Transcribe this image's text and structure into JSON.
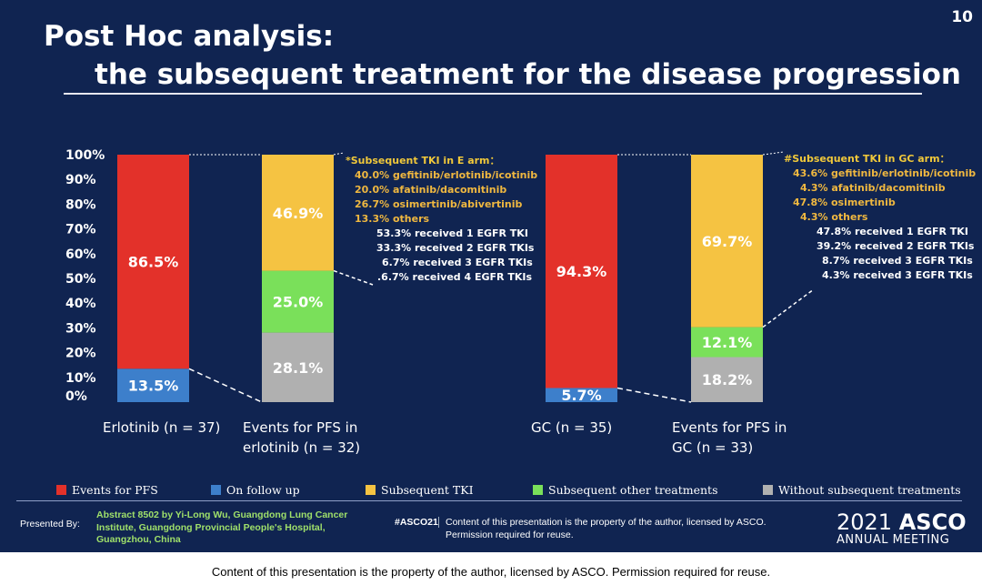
{
  "slide": {
    "title_line1": "Post Hoc analysis:",
    "title_line2": "the subsequent treatment for the disease progression",
    "slide_number": "10"
  },
  "chart_data": {
    "type": "bar",
    "subtype": "stacked-100",
    "y_ticks": [
      "100%",
      "90%",
      "80%",
      "70%",
      "60%",
      "50%",
      "40%",
      "30%",
      "20%",
      "10%",
      "0%"
    ],
    "ylim": [
      0,
      100
    ],
    "bars": [
      {
        "name": "erlotinib-bar",
        "label": "Erlotinib (n = 37)",
        "segments": [
          {
            "series": "on_follow_up",
            "value": 13.5,
            "label": "13.5%"
          },
          {
            "series": "events_for_pfs",
            "value": 86.5,
            "label": "86.5%"
          }
        ]
      },
      {
        "name": "erlotinib-events-bar",
        "label": "Events for PFS in erlotinib (n = 32)",
        "label_lines": [
          "Events for PFS in",
          "erlotinib (n = 32)"
        ],
        "segments": [
          {
            "series": "without_subsequent",
            "value": 28.1,
            "label": "28.1%"
          },
          {
            "series": "subsequent_other",
            "value": 25.0,
            "label": "25.0%"
          },
          {
            "series": "subsequent_tki",
            "value": 46.9,
            "label": "46.9%"
          }
        ]
      },
      {
        "name": "gc-bar",
        "label": "GC (n = 35)",
        "segments": [
          {
            "series": "on_follow_up",
            "value": 5.7,
            "label": "5.7%"
          },
          {
            "series": "events_for_pfs",
            "value": 94.3,
            "label": "94.3%"
          }
        ]
      },
      {
        "name": "gc-events-bar",
        "label": "Events for PFS in GC (n = 33)",
        "label_lines": [
          "Events for PFS in",
          "GC (n = 33)"
        ],
        "segments": [
          {
            "series": "without_subsequent",
            "value": 18.2,
            "label": "18.2%"
          },
          {
            "series": "subsequent_other",
            "value": 12.1,
            "label": "12.1%"
          },
          {
            "series": "subsequent_tki",
            "value": 69.7,
            "label": "69.7%"
          }
        ]
      }
    ],
    "legend": [
      {
        "key": "events_for_pfs",
        "label": "Events for PFS",
        "color": "#e3312a"
      },
      {
        "key": "on_follow_up",
        "label": "On follow up",
        "color": "#3d7fcb"
      },
      {
        "key": "subsequent_tki",
        "label": "Subsequent TKI",
        "color": "#f5c342"
      },
      {
        "key": "subsequent_other",
        "label": "Subsequent other treatments",
        "color": "#7ae05a"
      },
      {
        "key": "without_subsequent",
        "label": "Without subsequent treatments",
        "color": "#b0b0b0"
      }
    ],
    "legend_position": "bottom"
  },
  "annotations": {
    "e_arm": {
      "heading": "*Subsequent TKI in E arm：",
      "drugs": [
        "40.0% gefitinib/erlotinib/icotinib",
        "20.0% afatinib/dacomitinib",
        "26.7% osimertinib/abivertinib",
        "13.3% others"
      ],
      "lines_of_tki": [
        "53.3%  received 1 EGFR TKI",
        "33.3%  received 2 EGFR TKIs",
        "6.7%  received 3 EGFR TKIs",
        ".6.7%  received 4 EGFR TKIs"
      ]
    },
    "gc_arm": {
      "heading": "#Subsequent TKI in GC arm：",
      "drugs": [
        "43.6% gefitinib/erlotinib/icotinib",
        "4.3% afatinib/dacomitinib",
        "47.8% osimertinib",
        "4.3% others"
      ],
      "lines_of_tki": [
        "47.8% received 1 EGFR TKI",
        "39.2% received 2 EGFR TKIs",
        "8.7% received 3 EGFR TKIs",
        "4.3% received 3 EGFR TKIs"
      ]
    }
  },
  "footer": {
    "presented_by": "Presented By:",
    "abstract": "Abstract 8502 by Yi-Long Wu, Guangdong Lung Cancer Institute, Guangdong Provincial People's Hospital, Guangzhou, China",
    "hashtag": "#ASCO21",
    "copyright": "Content of this presentation is the property of the author, licensed by ASCO. Permission required for reuse.",
    "asco_year": "2021",
    "asco_name": "ASCO",
    "asco_meeting": "ANNUAL MEETING"
  },
  "caption": "Content of this presentation is the property of the author, licensed by ASCO. Permission required for reuse."
}
